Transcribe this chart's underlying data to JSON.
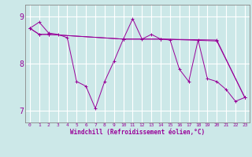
{
  "xlabel": "Windchill (Refroidissement éolien,°C)",
  "background_color": "#cce8e8",
  "grid_color": "#ffffff",
  "line_color": "#990099",
  "spine_color": "#888888",
  "xlim": [
    -0.5,
    23.5
  ],
  "ylim": [
    6.75,
    9.25
  ],
  "yticks": [
    7,
    8,
    9
  ],
  "xticks": [
    0,
    1,
    2,
    3,
    4,
    5,
    6,
    7,
    8,
    9,
    10,
    11,
    12,
    13,
    14,
    15,
    16,
    17,
    18,
    19,
    20,
    21,
    22,
    23
  ],
  "xticklabels": [
    "0",
    "1",
    "2",
    "3",
    "4",
    "5",
    "6",
    "7",
    "8",
    "9",
    "10",
    "11",
    "12",
    "13",
    "14",
    "15",
    "16",
    "17",
    "18",
    "19",
    "20",
    "21",
    "22",
    "23"
  ],
  "series1_x": [
    0,
    1,
    2,
    3,
    4,
    5,
    6,
    7,
    8,
    9,
    10,
    11,
    12,
    13,
    14,
    15,
    16,
    17,
    18,
    19,
    20,
    21,
    22,
    23
  ],
  "series1_y": [
    8.75,
    8.88,
    8.65,
    8.62,
    8.55,
    7.62,
    7.52,
    7.05,
    7.62,
    8.05,
    8.52,
    8.95,
    8.52,
    8.62,
    8.52,
    8.5,
    7.88,
    7.62,
    8.5,
    7.68,
    7.62,
    7.45,
    7.2,
    7.28
  ],
  "series2_x": [
    0,
    1,
    2,
    10,
    14,
    20,
    23
  ],
  "series2_y": [
    8.75,
    8.62,
    8.62,
    8.52,
    8.52,
    8.5,
    7.28
  ],
  "series3_x": [
    0,
    1,
    2,
    10,
    14,
    20,
    23
  ],
  "series3_y": [
    8.75,
    8.62,
    8.62,
    8.52,
    8.52,
    8.48,
    7.28
  ]
}
